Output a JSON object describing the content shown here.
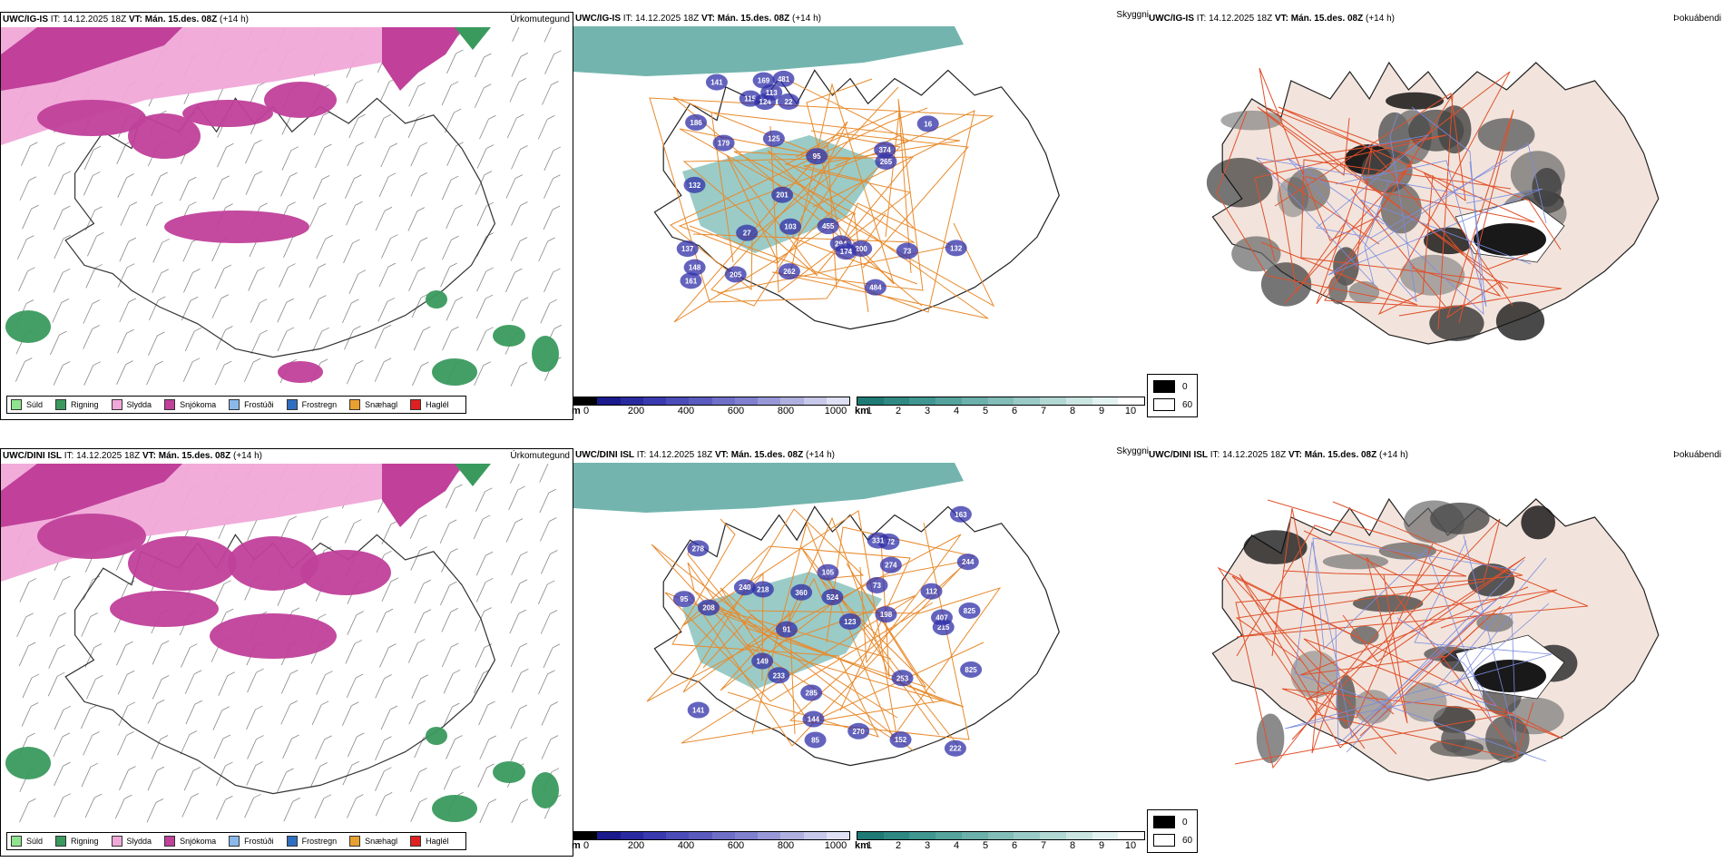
{
  "panels": {
    "ig_precip": {
      "model": "UWC/IG-IS",
      "it_label": "IT:",
      "it_value": "14.12.2025 18Z",
      "vt_label": "VT:",
      "vt_value": "Mán. 15.des. 08Z",
      "lead": "(+14 h)",
      "tag": "Úrkomutegund"
    },
    "ig_ceiling": {
      "model": "UWC/IG-IS",
      "it_label": "IT:",
      "it_value": "14.12.2025 18Z",
      "vt_label": "VT:",
      "vt_value": "Mán. 15.des. 08Z",
      "lead": "(+14 h)",
      "tag": "Skyggni"
    },
    "ig_fog": {
      "model": "UWC/IG-IS",
      "it_label": "IT:",
      "it_value": "14.12.2025 18Z",
      "vt_label": "VT:",
      "vt_value": "Mán. 15.des. 08Z",
      "lead": "(+14 h)",
      "tag": "Þokuábendi"
    },
    "dini_precip": {
      "model": "UWC/DINI ISL",
      "it_label": "IT:",
      "it_value": "14.12.2025 18Z",
      "vt_label": "VT:",
      "vt_value": "Mán. 15.des. 08Z",
      "lead": "(+14 h)",
      "tag": "Úrkomutegund"
    },
    "dini_ceiling": {
      "model": "UWC/DINI ISL",
      "it_label": "IT:",
      "it_value": "14.12.2025 18Z",
      "vt_label": "VT:",
      "vt_value": "Mán. 15.des. 08Z",
      "lead": "(+14 h)",
      "tag": "Skyggni"
    },
    "dini_fog": {
      "model": "UWC/DINI ISL",
      "it_label": "IT:",
      "it_value": "14.12.2025 18Z",
      "vt_label": "VT:",
      "vt_value": "Mán. 15.des. 08Z",
      "lead": "(+14 h)",
      "tag": "Þokuábendi"
    }
  },
  "precip_legend": [
    {
      "label": "Súld",
      "color": "#8fe38f"
    },
    {
      "label": "Rigning",
      "color": "#3a9a5e"
    },
    {
      "label": "Slydda",
      "color": "#f0a8d8"
    },
    {
      "label": "Snjókoma",
      "color": "#c0409a"
    },
    {
      "label": "Frostúði",
      "color": "#8ab8ea"
    },
    {
      "label": "Frostregn",
      "color": "#2f6fc0"
    },
    {
      "label": "Snæhagl",
      "color": "#e8a030"
    },
    {
      "label": "Haglél",
      "color": "#e02020"
    }
  ],
  "ceiling_scale": {
    "unit": "m",
    "ticks": [
      "0",
      "200",
      "400",
      "600",
      "800",
      "1000"
    ],
    "colors": [
      "#000000",
      "#1a1a8c",
      "#2a2aa0",
      "#3a3ab0",
      "#4c4cb8",
      "#5a5abf",
      "#6f6fc8",
      "#8080cf",
      "#9898d8",
      "#b0b0e0",
      "#c8c8ea",
      "#e0e0f4"
    ]
  },
  "visibility_scale": {
    "unit": "km",
    "ticks": [
      "1",
      "2",
      "3",
      "4",
      "5",
      "6",
      "7",
      "8",
      "9",
      "10"
    ],
    "colors": [
      "#1e7a74",
      "#2f8882",
      "#409690",
      "#55a39d",
      "#6bb0aa",
      "#82bdb8",
      "#9acac6",
      "#b2d8d4",
      "#cae5e2",
      "#e2f2f0",
      "#ffffff"
    ]
  },
  "fog_legend": [
    {
      "label": "0",
      "color": "#000000"
    },
    {
      "label": "60",
      "color": "#ffffff"
    }
  ],
  "ceiling_labels_ig": [
    "115",
    "132",
    "179",
    "169",
    "186",
    "161",
    "294",
    "148",
    "22",
    "201",
    "103",
    "95",
    "137",
    "481",
    "484",
    "132",
    "125",
    "124",
    "262",
    "200",
    "374",
    "265",
    "174",
    "205",
    "27",
    "455",
    "141",
    "113",
    "73",
    "16"
  ],
  "ceiling_labels_dini": [
    "825",
    "278",
    "163",
    "141",
    "244",
    "198",
    "222",
    "253",
    "208",
    "215",
    "152",
    "105",
    "149",
    "218",
    "240",
    "285",
    "672",
    "270",
    "274",
    "233",
    "825",
    "360",
    "524",
    "331",
    "407",
    "123",
    "95",
    "144",
    "112",
    "91",
    "85",
    "73"
  ]
}
